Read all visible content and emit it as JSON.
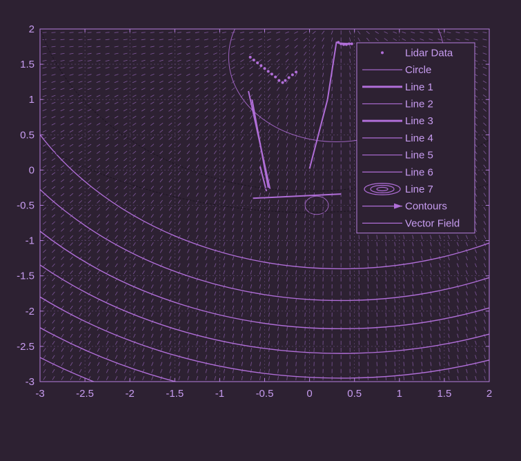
{
  "chart_data": {
    "type": "scatter",
    "title": "",
    "xlabel": "",
    "ylabel": "",
    "xlim": [
      -3,
      2
    ],
    "ylim": [
      -3,
      2
    ],
    "xticks": [
      -3,
      -2.5,
      -2,
      -1.5,
      -1,
      -0.5,
      0,
      0.5,
      1,
      1.5,
      2
    ],
    "yticks": [
      -3,
      -2.5,
      -2,
      -1.5,
      -1,
      -0.5,
      0,
      0.5,
      1,
      1.5,
      2
    ],
    "grid": true,
    "legend_position": "top-right",
    "colors": {
      "background": "#2d2132",
      "axes": "#b77fe0",
      "tick_text": "#c79cf0",
      "line": "#b06ed8",
      "faint": "#7a5a93",
      "field": "#9a6abf"
    },
    "legend": [
      "Lidar Data",
      "Circle",
      "Line 1",
      "Line 2",
      "Line 3",
      "Line 4",
      "Line 5",
      "Line 6",
      "Line 7",
      "Contours",
      "Vector Field"
    ],
    "series": [
      {
        "name": "Lidar Data",
        "style": "points",
        "x": [
          -0.66,
          -0.62,
          -0.58,
          -0.54,
          -0.5,
          -0.46,
          -0.42,
          -0.38,
          -0.34,
          -0.3,
          -0.27,
          -0.23,
          -0.19,
          -0.15,
          0.32,
          0.35,
          0.38,
          0.41,
          0.44,
          0.47
        ],
        "y": [
          1.6,
          1.56,
          1.52,
          1.48,
          1.44,
          1.4,
          1.36,
          1.32,
          1.27,
          1.24,
          1.27,
          1.31,
          1.35,
          1.39,
          1.81,
          1.79,
          1.78,
          1.78,
          1.79,
          1.79
        ]
      },
      {
        "name": "Circle",
        "style": "circle",
        "center": [
          0.3,
          1.6
        ],
        "radius": 1.2
      },
      {
        "name": "Line 1",
        "x": [
          -0.68,
          -0.44
        ],
        "y": [
          1.12,
          -0.27
        ]
      },
      {
        "name": "Line 2",
        "x": [
          -0.64,
          -0.46
        ],
        "y": [
          1.0,
          -0.25
        ]
      },
      {
        "name": "Line 3",
        "x": [
          -0.63,
          0.35
        ],
        "y": [
          -0.4,
          -0.34
        ]
      },
      {
        "name": "Line 4",
        "x": [
          -0.55,
          -0.48
        ],
        "y": [
          0.05,
          -0.3
        ]
      },
      {
        "name": "Line 5",
        "x": [
          0.0,
          0.2
        ],
        "y": [
          0.02,
          1.0
        ]
      },
      {
        "name": "Line 6",
        "x": [
          0.2,
          0.3
        ],
        "y": [
          1.0,
          1.82
        ]
      },
      {
        "name": "Line 7",
        "x": [
          0.32,
          0.47
        ],
        "y": [
          1.8,
          1.79
        ]
      },
      {
        "name": "Small Circle",
        "style": "circle",
        "center": [
          0.08,
          -0.5
        ],
        "radius": 0.13
      },
      {
        "name": "Dark Contour",
        "style": "arc",
        "center": [
          0.0,
          2.8
        ],
        "radius": 3.1
      },
      {
        "name": "Dark Contour 2",
        "style": "arc",
        "center": [
          0.0,
          4.6
        ],
        "radius": 5.2
      }
    ],
    "contours": {
      "center": [
        0.35,
        2.5
      ],
      "radii": [
        3.9,
        4.35,
        4.75,
        5.1,
        5.45,
        5.8,
        6.15
      ]
    },
    "vector_field": {
      "spacing": 0.1,
      "pivot": [
        0.35,
        2.2
      ]
    }
  }
}
